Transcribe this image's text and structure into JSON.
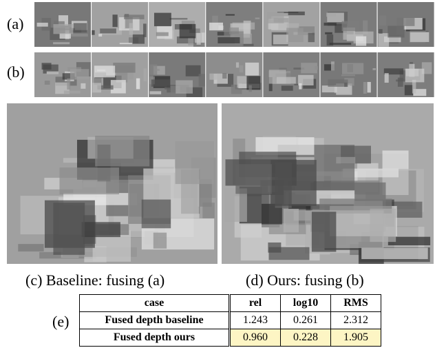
{
  "figure": {
    "row_labels": [
      "(a)",
      "(b)"
    ],
    "captions": [
      "(c) Baseline: fusing (a)",
      "(d) Ours: fusing (b)"
    ],
    "table_label": "(e)",
    "table": {
      "header": [
        "case",
        "rel",
        "log10",
        "RMS"
      ],
      "rows": [
        [
          "Fused depth baseline",
          "1.243",
          "0.261",
          "2.312"
        ],
        [
          "Fused depth ours",
          "0.960",
          "0.228",
          "1.905"
        ]
      ]
    }
  }
}
